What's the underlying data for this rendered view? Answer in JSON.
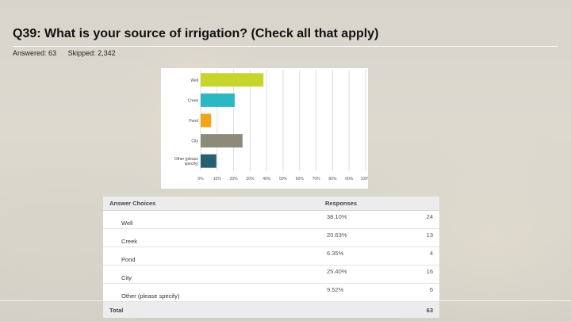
{
  "slide": {
    "title": "Q39: What is your source of irrigation? (Check all that apply)",
    "answered": "Answered: 63",
    "skipped": "Skipped: 2,342"
  },
  "chart_data": {
    "type": "bar",
    "orientation": "horizontal",
    "categories": [
      "Well",
      "Creek",
      "Pond",
      "City",
      "Other (please specify)"
    ],
    "values": [
      38.1,
      20.63,
      6.35,
      25.4,
      9.52
    ],
    "colors": [
      "#c6d52b",
      "#2bb7c4",
      "#f2a51c",
      "#8d8a7a",
      "#275f73"
    ],
    "xlim": [
      0,
      100
    ],
    "ticks": [
      "0%",
      "10%",
      "20%",
      "30%",
      "40%",
      "50%",
      "60%",
      "70%",
      "80%",
      "90%",
      "100%"
    ],
    "grid": true
  },
  "table": {
    "headers": [
      "Answer Choices",
      "Responses"
    ],
    "rows": [
      {
        "choice": "Well",
        "response": "38.10%",
        "count": "24"
      },
      {
        "choice": "Creek",
        "response": "20.63%",
        "count": "13"
      },
      {
        "choice": "Pond",
        "response": "6.35%",
        "count": "4"
      },
      {
        "choice": "City",
        "response": "25.40%",
        "count": "16"
      },
      {
        "choice": "Other (please specify)",
        "response": "9.52%",
        "count": "6"
      }
    ],
    "total_label": "Total",
    "total_value": "63"
  }
}
